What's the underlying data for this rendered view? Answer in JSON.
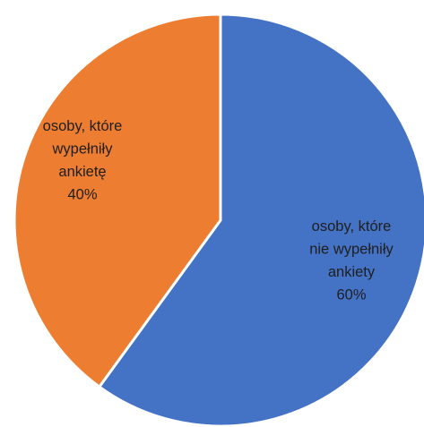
{
  "chart_data": {
    "type": "pie",
    "title": "",
    "start_angle_deg": 0,
    "direction": "clockwise",
    "slices": [
      {
        "label_lines": [
          "osoby, które",
          "nie wypełniły",
          "ankiety",
          "60%"
        ],
        "value": 60,
        "color": "#4472C4"
      },
      {
        "label_lines": [
          "osoby, które",
          "wypełniły",
          "ankietę",
          "40%"
        ],
        "value": 40,
        "color": "#ED7D31"
      }
    ],
    "border_color": "#FFFFFF",
    "legend": "none"
  }
}
